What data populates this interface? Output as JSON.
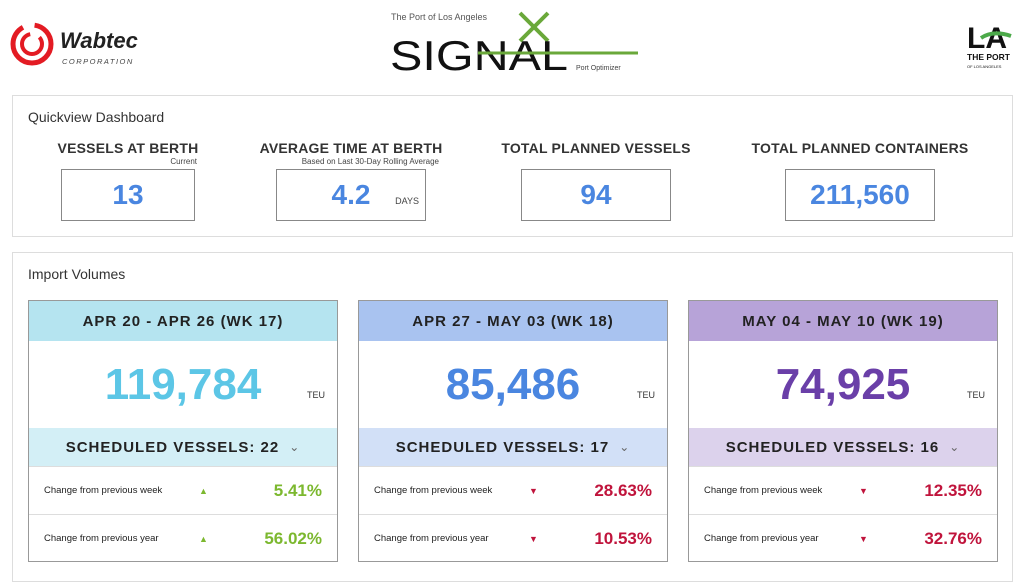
{
  "logos": {
    "wabtec": "Wabtec",
    "wabtec_sub": "CORPORATION",
    "signal_top": "The Port of Los Angeles",
    "signal": "SIGNAL",
    "signal_powered": "Port Optimizer",
    "la": "LA",
    "la_sub": "THE PORT",
    "la_sub2": "OF LOS ANGELES"
  },
  "quickview": {
    "title": "Quickview Dashboard",
    "kpis": [
      {
        "label": "VESSELS AT BERTH",
        "sub": "Current",
        "value": "13",
        "unit": ""
      },
      {
        "label": "AVERAGE TIME AT BERTH",
        "sub": "Based on Last 30-Day Rolling Average",
        "value": "4.2",
        "unit": "DAYS"
      },
      {
        "label": "TOTAL PLANNED VESSELS",
        "sub": "",
        "value": "94",
        "unit": ""
      },
      {
        "label": "TOTAL PLANNED CONTAINERS",
        "sub": "",
        "value": "211,560",
        "unit": ""
      }
    ]
  },
  "imports": {
    "title": "Import Volumes",
    "cards": [
      {
        "week": "APR 20 - APR 26 (WK 17)",
        "value": "119,784",
        "unit": "TEU",
        "scheduled": "SCHEDULED VESSELS: 22",
        "head_color": "#b5e4f0",
        "sched_color": "#d3eff6",
        "num_color": "#5cc6e6",
        "rows": [
          {
            "label": "Change from previous week",
            "direction": "up",
            "value": "5.41%"
          },
          {
            "label": "Change from previous year",
            "direction": "up",
            "value": "56.02%"
          }
        ]
      },
      {
        "week": "APR 27 - MAY 03 (WK 18)",
        "value": "85,486",
        "unit": "TEU",
        "scheduled": "SCHEDULED VESSELS: 17",
        "head_color": "#a9c3f0",
        "sched_color": "#d2e0f7",
        "num_color": "#4a86e0",
        "rows": [
          {
            "label": "Change from previous week",
            "direction": "down",
            "value": "28.63%"
          },
          {
            "label": "Change from previous year",
            "direction": "down",
            "value": "10.53%"
          }
        ]
      },
      {
        "week": "MAY 04 - MAY 10 (WK 19)",
        "value": "74,925",
        "unit": "TEU",
        "scheduled": "SCHEDULED VESSELS: 16",
        "head_color": "#b7a3d8",
        "sched_color": "#dcd2ec",
        "num_color": "#6a3fa8",
        "rows": [
          {
            "label": "Change from previous week",
            "direction": "down",
            "value": "12.35%"
          },
          {
            "label": "Change from previous year",
            "direction": "down",
            "value": "32.76%"
          }
        ]
      }
    ]
  },
  "colors": {
    "up": "#7cb82f",
    "down": "#c0143c"
  }
}
